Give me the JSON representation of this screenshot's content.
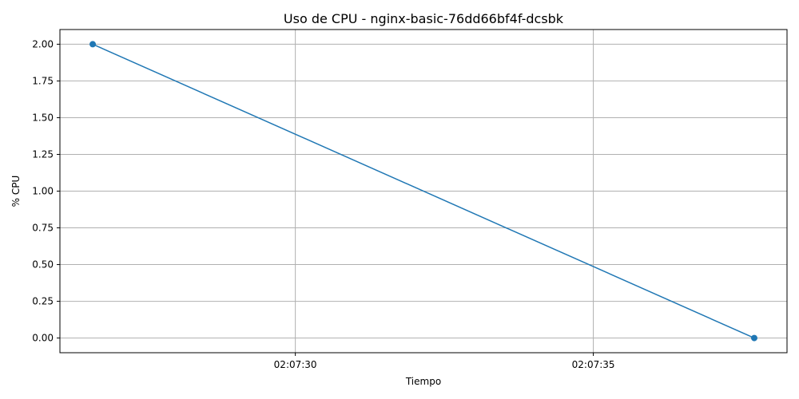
{
  "chart_data": {
    "type": "line",
    "title": "Uso de CPU - nginx-basic-76dd66bf4f-dcsbk",
    "xlabel": "Tiempo",
    "ylabel": "% CPU",
    "x": [
      "02:07:26.6",
      "02:07:37.7"
    ],
    "series": [
      {
        "values": [
          2.0,
          0.0
        ],
        "color": "#1f77b4",
        "marker": "circle"
      }
    ],
    "x_range": [
      "02:07:26.05",
      "02:07:38.25"
    ],
    "xticks": [
      "02:07:30",
      "02:07:35"
    ],
    "ylim": [
      -0.1,
      2.1
    ],
    "yticks": [
      "0.00",
      "0.25",
      "0.50",
      "0.75",
      "1.00",
      "1.25",
      "1.50",
      "1.75",
      "2.00"
    ],
    "grid": true,
    "legend": "none"
  }
}
